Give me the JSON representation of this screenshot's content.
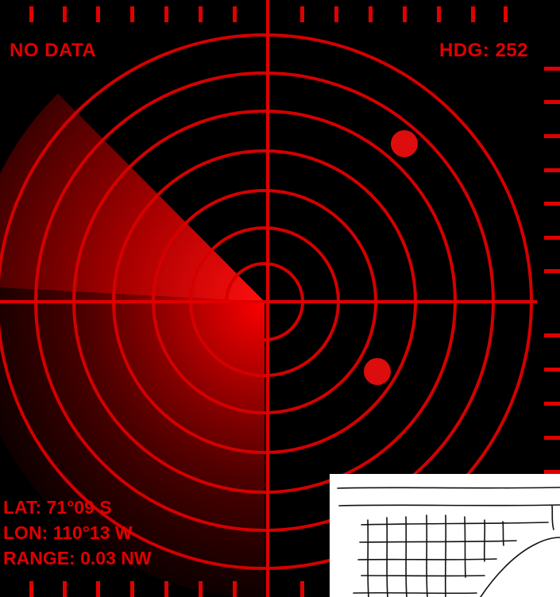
{
  "status": "NO DATA",
  "heading": "HDG: 252",
  "readout": {
    "lat": "LAT: 71°09 S",
    "lon": "LON: 110°13 W",
    "range": "RANGE: 0.03 NW"
  },
  "colors": {
    "background": "#000000",
    "accent": "#e00000",
    "blip": "#dd0d0d"
  },
  "icons": [
    "radar-sweep-icon",
    "blip-icon"
  ],
  "sketch": "hand-drawn grid sketch"
}
